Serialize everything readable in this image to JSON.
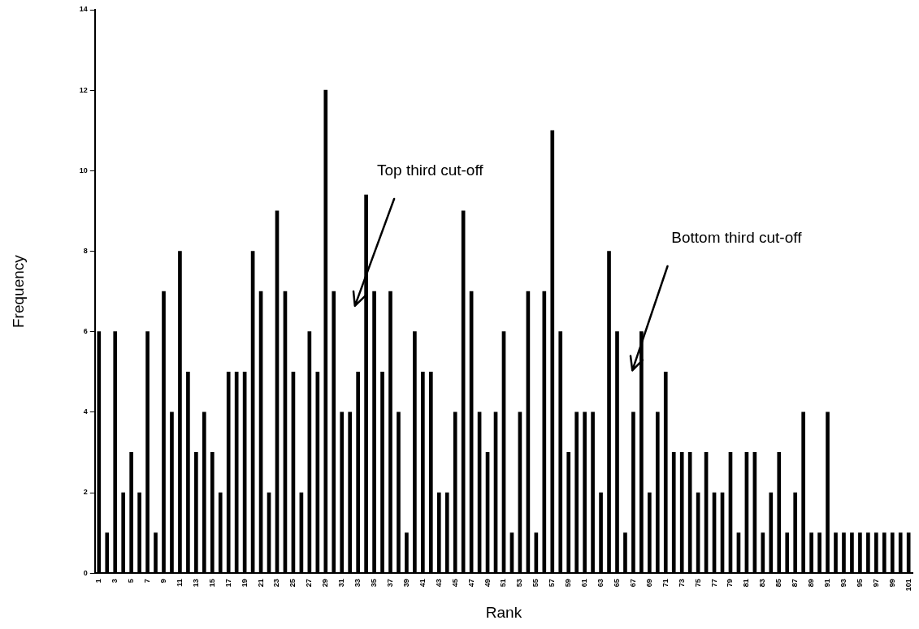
{
  "chart_data": {
    "type": "bar",
    "xlabel": "Rank",
    "ylabel": "Frequency",
    "categories": [
      "1",
      null,
      "3",
      null,
      "5",
      null,
      "7",
      null,
      "9",
      null,
      "11",
      null,
      "13",
      null,
      "15",
      null,
      "17",
      null,
      "19",
      null,
      "21",
      null,
      "23",
      null,
      "25",
      null,
      "27",
      null,
      "29",
      null,
      "31",
      null,
      "33",
      null,
      "35",
      null,
      "37",
      null,
      "39",
      null,
      "41",
      null,
      "43",
      null,
      "45",
      null,
      "47",
      null,
      "49",
      null,
      "51",
      null,
      "53",
      null,
      "55",
      null,
      "57",
      null,
      "59",
      null,
      "61",
      null,
      "63",
      null,
      "65",
      null,
      "67",
      null,
      "69",
      null,
      "71",
      null,
      "73",
      null,
      "75",
      null,
      "77",
      null,
      "79",
      null,
      "81",
      null,
      "83",
      null,
      "85",
      null,
      "87",
      null,
      "89",
      null,
      "91",
      null,
      "93",
      null,
      "95",
      null,
      "97",
      null,
      "99",
      null,
      "101"
    ],
    "values": [
      6,
      1,
      6,
      2,
      3,
      2,
      6,
      1,
      7,
      4,
      8,
      5,
      3,
      4,
      3,
      2,
      5,
      5,
      5,
      8,
      7,
      2,
      9,
      7,
      5,
      2,
      6,
      5,
      12,
      7,
      4,
      4,
      5,
      9.4,
      7,
      5,
      7,
      4,
      1,
      6,
      5,
      5,
      2,
      2,
      4,
      9,
      7,
      4,
      3,
      4,
      6,
      1,
      4,
      7,
      1,
      7,
      11,
      6,
      3,
      4,
      4,
      4,
      2,
      8,
      6,
      1,
      4,
      6,
      2,
      4,
      5,
      3,
      3,
      3,
      2,
      3,
      2,
      2,
      3,
      1,
      3,
      3,
      1,
      2,
      3,
      1,
      2,
      4,
      1,
      1,
      4,
      1,
      1,
      1,
      1,
      1,
      1,
      1,
      1,
      1,
      1
    ],
    "color": "#000000",
    "ylim": [
      0,
      14
    ],
    "yticks": [
      0,
      2,
      4,
      6,
      8,
      10,
      12,
      14
    ],
    "grid": false,
    "legend": false,
    "annotations": [
      "Top third cut-off",
      "Bottom third cut-off"
    ]
  }
}
